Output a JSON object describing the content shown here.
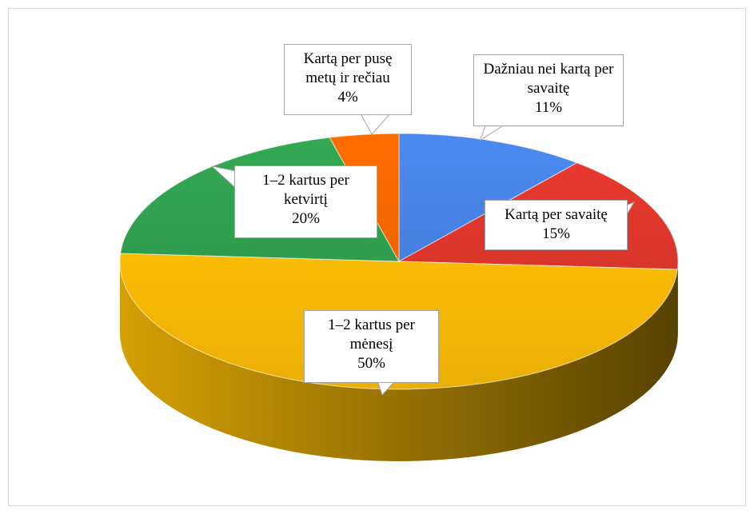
{
  "chart_data": {
    "type": "pie",
    "categories": [
      "Dažniau nei kartą per savaitę",
      "Kartą per savaitę",
      "1–2 kartus per mėnesį",
      "1–2 kartus per ketvirtį",
      "Kartą per pusę metų ir rečiau"
    ],
    "values": [
      11,
      15,
      50,
      20,
      4
    ],
    "value_labels": [
      "11%",
      "15%",
      "50%",
      "20%",
      "4%"
    ],
    "colors": [
      "#4a8af0",
      "#e8392e",
      "#fbbc05",
      "#34a853",
      "#ff6d00"
    ]
  }
}
